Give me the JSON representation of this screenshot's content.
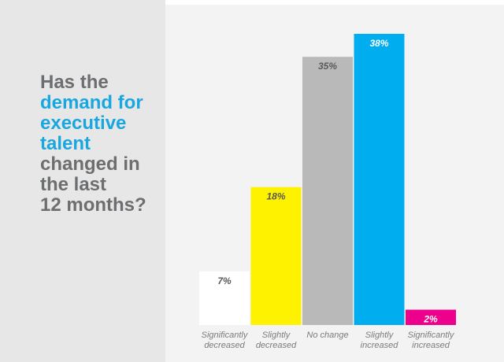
{
  "question": {
    "lines": [
      {
        "text": "Has the",
        "highlight": false
      },
      {
        "text": "demand for",
        "highlight": true
      },
      {
        "text": "executive",
        "highlight": true
      },
      {
        "text": "talent",
        "highlight": true
      },
      {
        "text": "changed in",
        "highlight": false
      },
      {
        "text": "the last",
        "highlight": false
      },
      {
        "text": "12 months?",
        "highlight": false
      }
    ],
    "text_color": "#6d6e70",
    "highlight_color": "#19a7e0"
  },
  "chart_data": {
    "type": "bar",
    "title": "Has the demand for executive talent changed in the last 12 months?",
    "xlabel": "",
    "ylabel": "",
    "ylim": [
      0,
      38
    ],
    "grid": false,
    "legend": "none",
    "categories": [
      [
        "Significantly",
        "decreased"
      ],
      [
        "Slightly",
        "decreased"
      ],
      [
        "No change"
      ],
      [
        "Slightly",
        "increased"
      ],
      [
        "Significantly",
        "increased"
      ]
    ],
    "values": [
      7,
      18,
      35,
      38,
      2
    ],
    "value_labels": [
      "7%",
      "18%",
      "35%",
      "38%",
      "2%"
    ],
    "colors": [
      "#ffffff",
      "#fff200",
      "#b9b9b9",
      "#00adef",
      "#ec008c"
    ],
    "value_label_colors": [
      "#58595b",
      "#58595b",
      "#58595b",
      "#ffffff",
      "#ffffff"
    ]
  }
}
